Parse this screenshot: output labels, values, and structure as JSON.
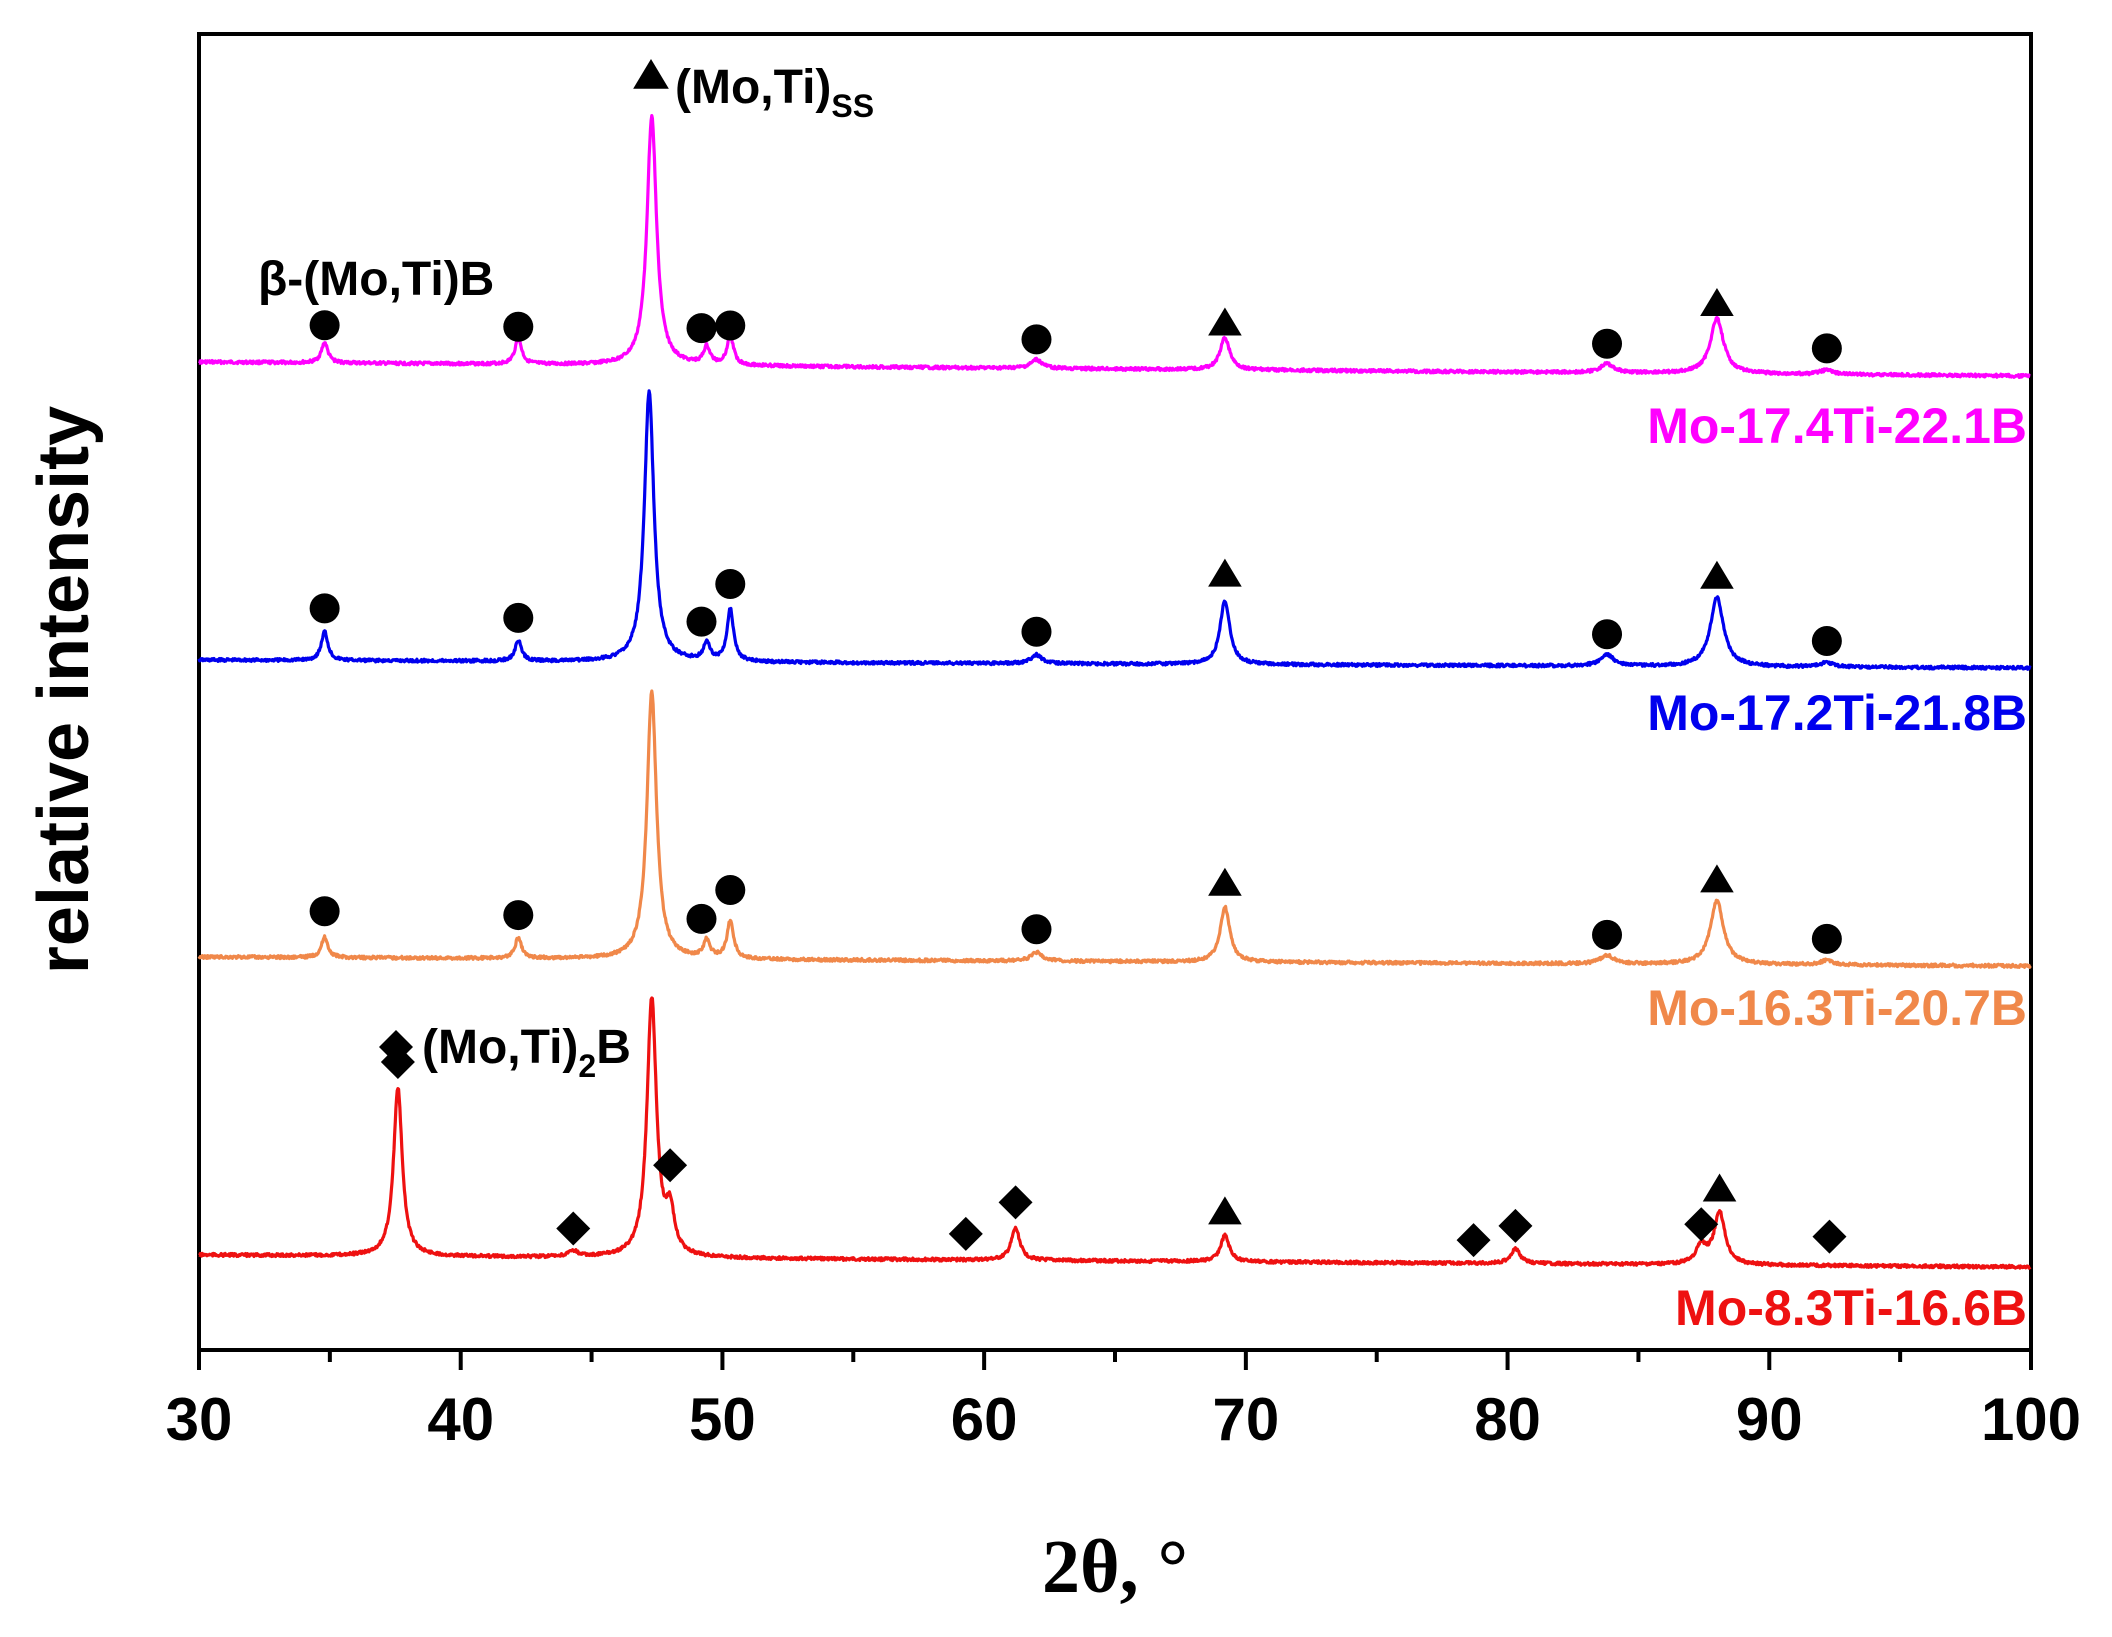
{
  "chart_data": {
    "type": "line",
    "title": "",
    "xlabel": "2θ, °",
    "ylabel": "relative intensity",
    "xlim": [
      30,
      100
    ],
    "xticks": [
      "30",
      "40",
      "50",
      "60",
      "70",
      "80",
      "90",
      "100"
    ],
    "yticks": [],
    "grid": false,
    "legend": "right-side labels under each pattern",
    "phase_labels": [
      {
        "name": "solid-solution",
        "marker": "triangle",
        "text": "(Mo,Ti)",
        "sub": "SS"
      },
      {
        "name": "beta-boride",
        "marker": "circle",
        "text": "β-(Mo,Ti)B",
        "sub": ""
      },
      {
        "name": "m2b-boride",
        "marker": "diamond",
        "text": "(Mo,Ti)",
        "sub": "2",
        "suffix": "B"
      }
    ],
    "series": [
      {
        "name": "Mo-17.4Ti-22.1B",
        "color": "#ff00ff",
        "baseline": 0,
        "peaks": [
          {
            "x": 34.8,
            "h": 0.07,
            "w": 0.15
          },
          {
            "x": 42.2,
            "h": 0.09,
            "w": 0.15
          },
          {
            "x": 47.3,
            "h": 0.86,
            "w": 0.22
          },
          {
            "x": 49.4,
            "h": 0.06,
            "w": 0.15
          },
          {
            "x": 50.3,
            "h": 0.1,
            "w": 0.15
          },
          {
            "x": 62.0,
            "h": 0.03,
            "w": 0.25
          },
          {
            "x": 69.2,
            "h": 0.11,
            "w": 0.22
          },
          {
            "x": 83.8,
            "h": 0.03,
            "w": 0.3
          },
          {
            "x": 88.0,
            "h": 0.19,
            "w": 0.3
          },
          {
            "x": 92.2,
            "h": 0.015,
            "w": 0.3
          }
        ],
        "markers": [
          {
            "x": 34.8,
            "shape": "circle",
            "lift": 0.13
          },
          {
            "x": 42.2,
            "shape": "circle",
            "lift": 0.13
          },
          {
            "x": 49.2,
            "shape": "circle",
            "lift": 0.13
          },
          {
            "x": 50.3,
            "shape": "circle",
            "lift": 0.14
          },
          {
            "x": 62.0,
            "shape": "circle",
            "lift": 0.1
          },
          {
            "x": 69.2,
            "shape": "triangle",
            "lift": 0.16
          },
          {
            "x": 83.8,
            "shape": "circle",
            "lift": 0.1
          },
          {
            "x": 88.0,
            "shape": "triangle",
            "lift": 0.24
          },
          {
            "x": 92.2,
            "shape": "circle",
            "lift": 0.09
          }
        ]
      },
      {
        "name": "Mo-17.2Ti-21.8B",
        "color": "#0000ee",
        "baseline": 0,
        "peaks": [
          {
            "x": 34.8,
            "h": 0.1,
            "w": 0.15
          },
          {
            "x": 42.2,
            "h": 0.07,
            "w": 0.15
          },
          {
            "x": 47.2,
            "h": 0.93,
            "w": 0.22
          },
          {
            "x": 49.4,
            "h": 0.06,
            "w": 0.15
          },
          {
            "x": 50.3,
            "h": 0.18,
            "w": 0.15
          },
          {
            "x": 62.0,
            "h": 0.03,
            "w": 0.25
          },
          {
            "x": 69.2,
            "h": 0.22,
            "w": 0.22
          },
          {
            "x": 83.8,
            "h": 0.04,
            "w": 0.3
          },
          {
            "x": 88.0,
            "h": 0.24,
            "w": 0.3
          },
          {
            "x": 92.2,
            "h": 0.015,
            "w": 0.3
          }
        ],
        "markers": [
          {
            "x": 34.8,
            "shape": "circle",
            "lift": 0.18
          },
          {
            "x": 42.2,
            "shape": "circle",
            "lift": 0.15
          },
          {
            "x": 49.2,
            "shape": "circle",
            "lift": 0.14
          },
          {
            "x": 50.3,
            "shape": "circle",
            "lift": 0.27
          },
          {
            "x": 62.0,
            "shape": "circle",
            "lift": 0.11
          },
          {
            "x": 69.2,
            "shape": "triangle",
            "lift": 0.31
          },
          {
            "x": 83.8,
            "shape": "circle",
            "lift": 0.11
          },
          {
            "x": 88.0,
            "shape": "triangle",
            "lift": 0.31
          },
          {
            "x": 92.2,
            "shape": "circle",
            "lift": 0.09
          }
        ]
      },
      {
        "name": "Mo-16.3Ti-20.7B",
        "color": "#f0884a",
        "baseline": 0,
        "peaks": [
          {
            "x": 34.8,
            "h": 0.07,
            "w": 0.15
          },
          {
            "x": 42.2,
            "h": 0.07,
            "w": 0.15
          },
          {
            "x": 47.3,
            "h": 0.92,
            "w": 0.22
          },
          {
            "x": 49.4,
            "h": 0.06,
            "w": 0.15
          },
          {
            "x": 50.3,
            "h": 0.13,
            "w": 0.15
          },
          {
            "x": 62.0,
            "h": 0.03,
            "w": 0.25
          },
          {
            "x": 69.2,
            "h": 0.19,
            "w": 0.22
          },
          {
            "x": 83.8,
            "h": 0.03,
            "w": 0.3
          },
          {
            "x": 88.0,
            "h": 0.22,
            "w": 0.3
          },
          {
            "x": 92.2,
            "h": 0.015,
            "w": 0.3
          }
        ],
        "markers": [
          {
            "x": 34.8,
            "shape": "circle",
            "lift": 0.16
          },
          {
            "x": 42.2,
            "shape": "circle",
            "lift": 0.15
          },
          {
            "x": 49.2,
            "shape": "circle",
            "lift": 0.14
          },
          {
            "x": 50.3,
            "shape": "circle",
            "lift": 0.24
          },
          {
            "x": 62.0,
            "shape": "circle",
            "lift": 0.11
          },
          {
            "x": 69.2,
            "shape": "triangle",
            "lift": 0.27
          },
          {
            "x": 83.8,
            "shape": "circle",
            "lift": 0.1
          },
          {
            "x": 88.0,
            "shape": "triangle",
            "lift": 0.29
          },
          {
            "x": 92.2,
            "shape": "circle",
            "lift": 0.09
          }
        ]
      },
      {
        "name": "Mo-8.3Ti-16.6B",
        "color": "#ee1111",
        "baseline": 0,
        "peaks": [
          {
            "x": 37.6,
            "h": 0.58,
            "w": 0.2
          },
          {
            "x": 44.3,
            "h": 0.02,
            "w": 0.2
          },
          {
            "x": 47.3,
            "h": 0.89,
            "w": 0.22
          },
          {
            "x": 48.0,
            "h": 0.14,
            "w": 0.2
          },
          {
            "x": 61.2,
            "h": 0.11,
            "w": 0.2
          },
          {
            "x": 69.2,
            "h": 0.09,
            "w": 0.2
          },
          {
            "x": 80.3,
            "h": 0.05,
            "w": 0.22
          },
          {
            "x": 87.4,
            "h": 0.06,
            "w": 0.25
          },
          {
            "x": 88.1,
            "h": 0.18,
            "w": 0.25
          }
        ],
        "markers": [
          {
            "x": 37.6,
            "shape": "diamond",
            "lift": 0.67
          },
          {
            "x": 44.3,
            "shape": "diamond",
            "lift": 0.1
          },
          {
            "x": 48.0,
            "shape": "diamond",
            "lift": 0.32
          },
          {
            "x": 59.3,
            "shape": "diamond",
            "lift": 0.09
          },
          {
            "x": 61.2,
            "shape": "diamond",
            "lift": 0.2
          },
          {
            "x": 69.2,
            "shape": "triangle",
            "lift": 0.17
          },
          {
            "x": 78.7,
            "shape": "diamond",
            "lift": 0.08
          },
          {
            "x": 80.3,
            "shape": "diamond",
            "lift": 0.13
          },
          {
            "x": 87.4,
            "shape": "diamond",
            "lift": 0.14
          },
          {
            "x": 88.1,
            "shape": "triangle",
            "lift": 0.26
          },
          {
            "x": 92.3,
            "shape": "diamond",
            "lift": 0.1
          }
        ]
      }
    ]
  }
}
